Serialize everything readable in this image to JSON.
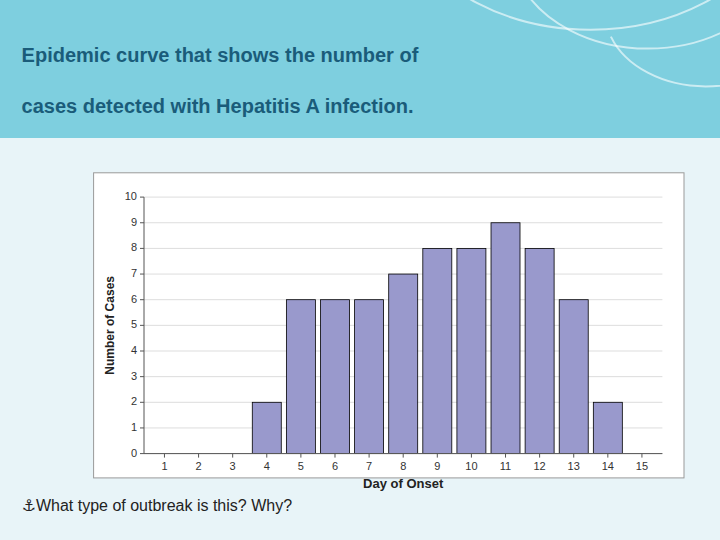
{
  "chart_data": {
    "type": "bar",
    "title": [
      "Epidemic curve that shows the number of",
      "cases detected with Hepatitis A infection."
    ],
    "annotations": [
      "⚓What type of outbreak is this? Why?"
    ],
    "x": [
      1,
      2,
      3,
      4,
      5,
      6,
      7,
      8,
      9,
      10,
      11,
      12,
      13,
      14,
      15
    ],
    "values": [
      0,
      0,
      0,
      2,
      6,
      6,
      6,
      7,
      8,
      8,
      9,
      8,
      6,
      2,
      0
    ],
    "color": "#9999cc",
    "xlabel": "Day of Onset",
    "ylabel": "Number of Cases",
    "xlim": [
      0.4,
      15.6
    ],
    "xticks": [
      1,
      2,
      3,
      4,
      5,
      6,
      7,
      8,
      9,
      10,
      11,
      12,
      13,
      14,
      15
    ],
    "ylim": [
      0,
      10
    ],
    "yticks": [
      0,
      1,
      2,
      3,
      4,
      5,
      6,
      7,
      8,
      9,
      10
    ],
    "grid": true
  }
}
